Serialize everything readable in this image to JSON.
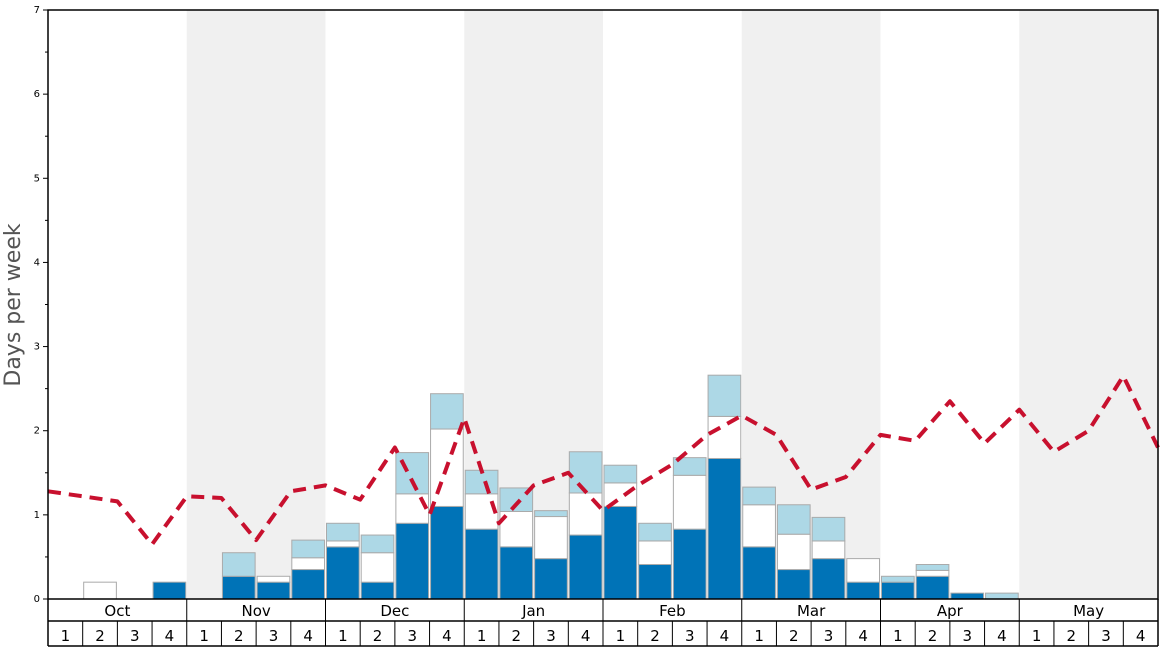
{
  "colors": {
    "band": "#f0f0f0",
    "seg1": "#0073b7",
    "seg2": "#ffffff",
    "seg3": "#add8e6",
    "bar_edge": "#aaaaaa",
    "line": "#c8102e",
    "axis": "#000000"
  },
  "chart_data": {
    "type": "bar",
    "title": "",
    "xlabel": "",
    "ylabel": "Days per week",
    "ylim": [
      0,
      7
    ],
    "yticks": [
      0,
      1,
      2,
      3,
      4,
      5,
      6,
      7
    ],
    "grid": false,
    "stacked": true,
    "months": [
      "Oct",
      "Nov",
      "Dec",
      "Jan",
      "Feb",
      "Mar",
      "Apr",
      "May"
    ],
    "week_labels": [
      "1",
      "2",
      "3",
      "4"
    ],
    "series": [
      {
        "values": [
          0,
          0,
          0,
          0.2,
          0,
          0.27,
          0.2,
          0.35,
          0.62,
          0.2,
          0.9,
          1.1,
          0.83,
          0.62,
          0.48,
          0.76,
          1.1,
          0.41,
          0.83,
          1.67,
          0.62,
          0.35,
          0.48,
          0.2,
          0.2,
          0.27,
          0.07,
          0,
          0,
          0,
          0,
          0
        ]
      },
      {
        "values": [
          0,
          0.2,
          0,
          0,
          0,
          0,
          0.07,
          0.14,
          0.07,
          0.35,
          0.35,
          0.92,
          0.42,
          0.42,
          0.5,
          0.5,
          0.28,
          0.28,
          0.64,
          0.5,
          0.5,
          0.42,
          0.21,
          0.28,
          0,
          0.07,
          0,
          0,
          0,
          0,
          0,
          0
        ]
      },
      {
        "values": [
          0,
          0,
          0,
          0,
          0,
          0.28,
          0,
          0.21,
          0.21,
          0.21,
          0.49,
          0.42,
          0.28,
          0.28,
          0.07,
          0.49,
          0.21,
          0.21,
          0.21,
          0.49,
          0.21,
          0.35,
          0.28,
          0,
          0.07,
          0.07,
          0,
          0.07,
          0,
          0,
          0,
          0
        ]
      },
      {
        "type": "line",
        "style": "dashed",
        "values": [
          1.28,
          1.22,
          1.16,
          0.65,
          1.22,
          1.2,
          0.7,
          1.28,
          1.35,
          1.18,
          1.8,
          1.0,
          2.15,
          0.9,
          1.35,
          1.5,
          1.05,
          1.35,
          1.6,
          1.95,
          2.18,
          1.95,
          1.3,
          1.45,
          1.95,
          1.88,
          2.35,
          1.85,
          2.25,
          1.75,
          2.0,
          2.65,
          1.8
        ]
      }
    ]
  }
}
